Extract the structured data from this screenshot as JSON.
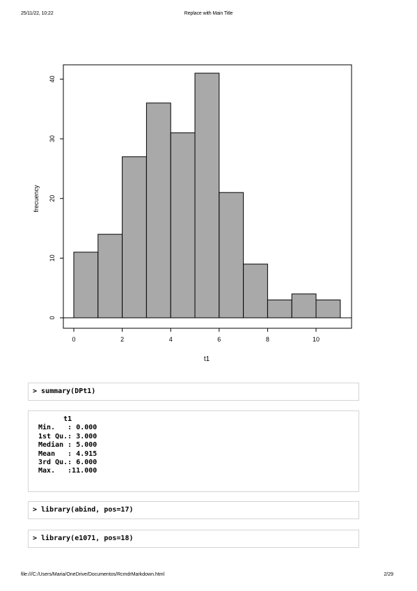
{
  "header": {
    "datetime": "25/11/22, 10:22",
    "title": "Replace with Main Title"
  },
  "chart_data": {
    "type": "bar",
    "title": "",
    "xlabel": "t1",
    "ylabel": "frecuency",
    "bins": [
      {
        "start": 0,
        "end": 1,
        "count": 11
      },
      {
        "start": 1,
        "end": 2,
        "count": 14
      },
      {
        "start": 2,
        "end": 3,
        "count": 27
      },
      {
        "start": 3,
        "end": 4,
        "count": 36
      },
      {
        "start": 4,
        "end": 5,
        "count": 31
      },
      {
        "start": 5,
        "end": 6,
        "count": 41
      },
      {
        "start": 6,
        "end": 7,
        "count": 21
      },
      {
        "start": 7,
        "end": 8,
        "count": 9
      },
      {
        "start": 8,
        "end": 9,
        "count": 3
      },
      {
        "start": 9,
        "end": 10,
        "count": 4
      },
      {
        "start": 10,
        "end": 11,
        "count": 3
      }
    ],
    "xticks": [
      "0",
      "2",
      "4",
      "6",
      "8",
      "10"
    ],
    "xtick_values": [
      0,
      2,
      4,
      6,
      8,
      10
    ],
    "yticks": [
      "0",
      "10",
      "20",
      "30",
      "40"
    ],
    "ytick_values": [
      0,
      10,
      20,
      30,
      40
    ],
    "xlim": [
      -0.4,
      11.4
    ],
    "ylim": [
      0,
      41
    ],
    "bar_color": "#a9a9a9"
  },
  "code": {
    "cmd_summary": "> summary(DPt1)",
    "summary_lines": [
      "       t1",
      " Min.   : 0.000",
      " 1st Qu.: 3.000",
      " Median : 5.000",
      " Mean   : 4.915",
      " 3rd Qu.: 6.000",
      " Max.   :11.000"
    ],
    "cmd_abind": "> library(abind, pos=17)",
    "cmd_e1071": "> library(e1071, pos=18)"
  },
  "footer": {
    "path": "file:///C:/Users/Maria/OneDrive/Documentos/RcmdrMarkdown.html",
    "page": "2/29"
  }
}
